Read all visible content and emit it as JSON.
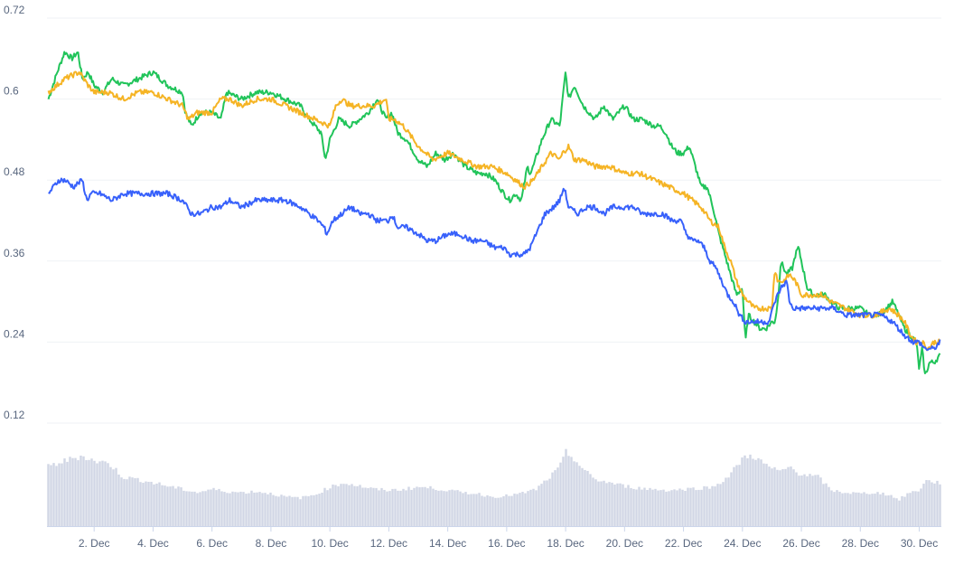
{
  "chart_data": {
    "type": "line",
    "title": "",
    "xlabel": "",
    "ylabel": "",
    "ylim": [
      0.12,
      0.72
    ],
    "y_ticks": [
      "0.72",
      "0.6",
      "0.48",
      "0.36",
      "0.24",
      "0.12"
    ],
    "y_tick_values": [
      0.72,
      0.6,
      0.48,
      0.36,
      0.24,
      0.12
    ],
    "x_range": [
      0.4,
      30.75
    ],
    "x_tick_labels": [
      "2. Dec",
      "4. Dec",
      "6. Dec",
      "8. Dec",
      "10. Dec",
      "12. Dec",
      "14. Dec",
      "16. Dec",
      "18. Dec",
      "20. Dec",
      "22. Dec",
      "24. Dec",
      "26. Dec",
      "28. Dec",
      "30. Dec"
    ],
    "x_tick_values": [
      2,
      4,
      6,
      8,
      10,
      12,
      14,
      16,
      18,
      20,
      22,
      24,
      26,
      28,
      30
    ],
    "grid": true,
    "legend": "none",
    "series": [
      {
        "color": "#21c45a",
        "x": [
          0.45,
          0.75,
          1,
          1.25,
          1.45,
          1.6,
          1.8,
          2,
          2.3,
          2.6,
          3,
          3.5,
          4,
          4.5,
          5,
          5.1,
          5.3,
          5.6,
          6,
          6.3,
          6.5,
          7,
          7.5,
          8,
          8.5,
          9,
          9.3,
          9.5,
          9.7,
          9.85,
          10,
          10.3,
          10.7,
          11,
          11.3,
          11.6,
          11.9,
          12.1,
          12.3,
          12.6,
          13,
          13.3,
          13.6,
          13.9,
          14.2,
          14.6,
          15,
          15.3,
          15.6,
          15.9,
          16.1,
          16.3,
          16.5,
          16.7,
          16.8,
          16.9,
          17.2,
          17.5,
          17.8,
          17.9,
          18,
          18.1,
          18.3,
          18.6,
          19,
          19.3,
          19.6,
          20,
          20.3,
          20.6,
          21,
          21.2,
          21.4,
          21.6,
          21.8,
          22,
          22.2,
          22.4,
          22.6,
          22.8,
          23,
          23.2,
          23.4,
          23.6,
          23.8,
          24,
          24.1,
          24.2,
          24.4,
          24.6,
          24.8,
          25,
          25.1,
          25.2,
          25.3,
          25.5,
          25.7,
          25.8,
          25.9,
          26,
          26.2,
          26.4,
          26.6,
          26.8,
          27,
          27.3,
          27.6,
          28,
          28.3,
          28.6,
          28.9,
          29.1,
          29.3,
          29.5,
          29.7,
          29.9,
          30,
          30.1,
          30.2,
          30.35,
          30.5,
          30.7
        ],
        "values": [
          0.6,
          0.64,
          0.67,
          0.66,
          0.67,
          0.63,
          0.64,
          0.62,
          0.61,
          0.63,
          0.62,
          0.63,
          0.64,
          0.62,
          0.61,
          0.58,
          0.56,
          0.58,
          0.58,
          0.57,
          0.61,
          0.6,
          0.61,
          0.61,
          0.6,
          0.59,
          0.57,
          0.56,
          0.55,
          0.51,
          0.54,
          0.57,
          0.56,
          0.57,
          0.58,
          0.6,
          0.57,
          0.58,
          0.55,
          0.54,
          0.51,
          0.5,
          0.52,
          0.51,
          0.52,
          0.5,
          0.49,
          0.49,
          0.48,
          0.46,
          0.45,
          0.46,
          0.45,
          0.5,
          0.49,
          0.5,
          0.54,
          0.57,
          0.56,
          0.6,
          0.64,
          0.6,
          0.62,
          0.59,
          0.57,
          0.59,
          0.57,
          0.59,
          0.57,
          0.57,
          0.56,
          0.56,
          0.55,
          0.53,
          0.52,
          0.52,
          0.53,
          0.5,
          0.47,
          0.47,
          0.44,
          0.4,
          0.37,
          0.34,
          0.31,
          0.32,
          0.24,
          0.28,
          0.27,
          0.26,
          0.26,
          0.27,
          0.27,
          0.3,
          0.36,
          0.34,
          0.35,
          0.37,
          0.38,
          0.36,
          0.32,
          0.31,
          0.31,
          0.31,
          0.3,
          0.29,
          0.29,
          0.29,
          0.28,
          0.28,
          0.29,
          0.3,
          0.28,
          0.26,
          0.25,
          0.24,
          0.2,
          0.23,
          0.19,
          0.21,
          0.21,
          0.22
        ]
      },
      {
        "color": "#f5b425",
        "x": [
          0.45,
          1,
          1.5,
          1.8,
          2,
          2.5,
          3,
          3.5,
          4,
          4.5,
          5,
          5.2,
          5.5,
          6,
          6.3,
          6.6,
          7,
          7.5,
          8,
          8.5,
          9,
          9.5,
          10,
          10.2,
          10.4,
          10.7,
          11,
          11.5,
          11.9,
          12,
          12.2,
          12.5,
          13,
          13.5,
          14,
          14.5,
          15,
          15.5,
          16,
          16.3,
          16.6,
          16.9,
          17.2,
          17.5,
          17.8,
          17.9,
          18.1,
          18.3,
          18.6,
          19,
          19.5,
          20,
          20.5,
          21,
          21.5,
          22,
          22.3,
          22.6,
          22.9,
          23.2,
          23.4,
          23.6,
          23.8,
          24,
          24.2,
          24.4,
          24.7,
          25,
          25.1,
          25.2,
          25.4,
          25.6,
          25.8,
          26,
          26.3,
          26.7,
          27,
          27.5,
          28,
          28.5,
          29,
          29.3,
          29.5,
          29.7,
          29.9,
          30.1,
          30.3,
          30.5,
          30.7
        ],
        "values": [
          0.61,
          0.63,
          0.64,
          0.62,
          0.61,
          0.61,
          0.6,
          0.61,
          0.61,
          0.6,
          0.59,
          0.57,
          0.58,
          0.58,
          0.6,
          0.6,
          0.59,
          0.6,
          0.6,
          0.59,
          0.58,
          0.57,
          0.56,
          0.59,
          0.6,
          0.59,
          0.59,
          0.59,
          0.6,
          0.57,
          0.57,
          0.56,
          0.53,
          0.51,
          0.52,
          0.51,
          0.5,
          0.5,
          0.49,
          0.48,
          0.47,
          0.48,
          0.5,
          0.52,
          0.51,
          0.52,
          0.53,
          0.51,
          0.51,
          0.5,
          0.5,
          0.49,
          0.49,
          0.48,
          0.47,
          0.46,
          0.45,
          0.44,
          0.42,
          0.41,
          0.38,
          0.36,
          0.33,
          0.31,
          0.3,
          0.29,
          0.29,
          0.29,
          0.35,
          0.33,
          0.33,
          0.34,
          0.33,
          0.31,
          0.31,
          0.31,
          0.3,
          0.29,
          0.28,
          0.28,
          0.29,
          0.28,
          0.27,
          0.25,
          0.24,
          0.24,
          0.23,
          0.24,
          0.24
        ]
      },
      {
        "color": "#3861fb",
        "x": [
          0.45,
          0.8,
          1,
          1.3,
          1.6,
          1.75,
          1.9,
          2.2,
          2.6,
          3,
          3.5,
          4,
          4.5,
          5,
          5.3,
          5.6,
          6,
          6.3,
          6.6,
          7,
          7.5,
          8,
          8.5,
          9,
          9.3,
          9.6,
          9.8,
          9.9,
          10.1,
          10.4,
          10.7,
          11,
          11.3,
          11.6,
          12,
          12.1,
          12.3,
          12.6,
          13,
          13.3,
          13.6,
          14,
          14.4,
          14.8,
          15.2,
          15.6,
          15.9,
          16.1,
          16.3,
          16.6,
          16.8,
          17,
          17.3,
          17.6,
          17.8,
          17.95,
          18.1,
          18.4,
          18.7,
          19,
          19.3,
          19.6,
          20,
          20.3,
          20.6,
          21,
          21.3,
          21.6,
          21.9,
          22.1,
          22.3,
          22.5,
          22.7,
          22.9,
          23.1,
          23.3,
          23.5,
          23.7,
          23.9,
          24.1,
          24.3,
          24.5,
          24.7,
          24.9,
          25.1,
          25.3,
          25.5,
          25.6,
          25.7,
          25.9,
          26.2,
          26.5,
          26.8,
          27.1,
          27.5,
          27.9,
          28.3,
          28.7,
          29.1,
          29.3,
          29.5,
          29.8,
          30,
          30.2,
          30.5,
          30.7
        ],
        "values": [
          0.46,
          0.48,
          0.48,
          0.47,
          0.48,
          0.45,
          0.46,
          0.46,
          0.45,
          0.46,
          0.46,
          0.46,
          0.46,
          0.45,
          0.43,
          0.43,
          0.44,
          0.44,
          0.45,
          0.44,
          0.45,
          0.45,
          0.45,
          0.44,
          0.43,
          0.42,
          0.41,
          0.4,
          0.42,
          0.43,
          0.44,
          0.43,
          0.43,
          0.42,
          0.42,
          0.43,
          0.41,
          0.41,
          0.4,
          0.39,
          0.39,
          0.4,
          0.4,
          0.39,
          0.39,
          0.38,
          0.38,
          0.37,
          0.37,
          0.37,
          0.38,
          0.4,
          0.43,
          0.44,
          0.45,
          0.47,
          0.44,
          0.43,
          0.44,
          0.44,
          0.43,
          0.44,
          0.44,
          0.44,
          0.43,
          0.43,
          0.43,
          0.42,
          0.42,
          0.4,
          0.39,
          0.39,
          0.38,
          0.36,
          0.35,
          0.33,
          0.31,
          0.3,
          0.28,
          0.27,
          0.27,
          0.27,
          0.27,
          0.27,
          0.3,
          0.32,
          0.33,
          0.3,
          0.29,
          0.29,
          0.29,
          0.29,
          0.29,
          0.29,
          0.28,
          0.28,
          0.28,
          0.28,
          0.27,
          0.26,
          0.25,
          0.24,
          0.24,
          0.23,
          0.23,
          0.24
        ]
      },
      {
        "color": "#c9cfe0",
        "axis": "volume (unlabeled)",
        "x": [
          0.45,
          1,
          1.6,
          2,
          2.5,
          3,
          3.5,
          4,
          4.5,
          5,
          5.5,
          6,
          6.5,
          7,
          7.5,
          8,
          8.5,
          9,
          9.5,
          10,
          10.5,
          11,
          11.5,
          12,
          12.5,
          13,
          13.5,
          14,
          14.5,
          15,
          15.5,
          16,
          16.5,
          17,
          17.5,
          17.8,
          18,
          18.3,
          18.6,
          19,
          19.5,
          20,
          20.5,
          21,
          21.5,
          22,
          22.5,
          23,
          23.5,
          23.8,
          24,
          24.3,
          24.6,
          25,
          25.3,
          25.6,
          25.9,
          26.2,
          26.6,
          27,
          27.5,
          28,
          28.5,
          29,
          29.3,
          29.6,
          30,
          30.2,
          30.4,
          30.7
        ],
        "values": [
          0.55,
          0.6,
          0.65,
          0.6,
          0.58,
          0.45,
          0.43,
          0.4,
          0.37,
          0.34,
          0.31,
          0.34,
          0.32,
          0.31,
          0.32,
          0.3,
          0.27,
          0.26,
          0.29,
          0.36,
          0.4,
          0.37,
          0.34,
          0.33,
          0.34,
          0.36,
          0.35,
          0.33,
          0.31,
          0.3,
          0.27,
          0.28,
          0.3,
          0.34,
          0.46,
          0.54,
          0.68,
          0.62,
          0.52,
          0.43,
          0.4,
          0.37,
          0.35,
          0.34,
          0.33,
          0.34,
          0.35,
          0.36,
          0.45,
          0.55,
          0.62,
          0.66,
          0.6,
          0.53,
          0.5,
          0.55,
          0.49,
          0.47,
          0.45,
          0.33,
          0.31,
          0.3,
          0.31,
          0.29,
          0.24,
          0.3,
          0.33,
          0.42,
          0.41,
          0.4
        ]
      }
    ]
  }
}
